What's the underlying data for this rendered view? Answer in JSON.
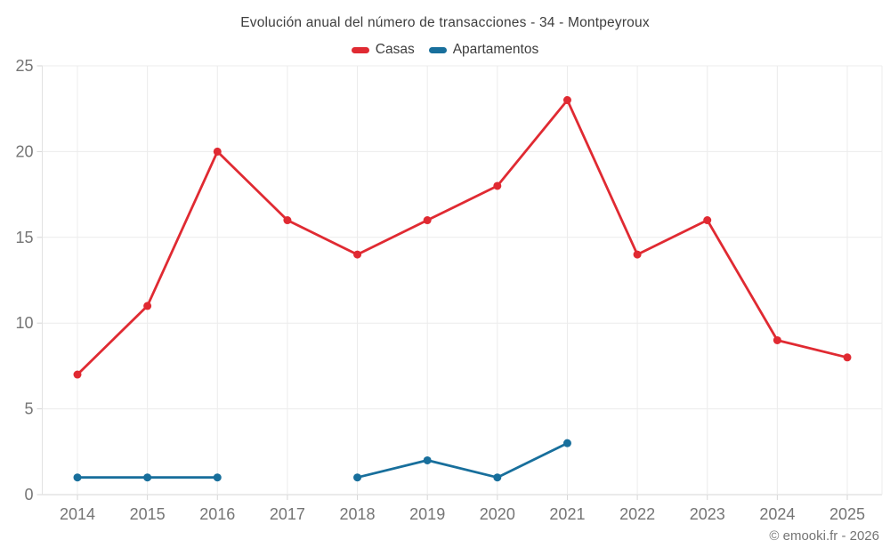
{
  "chart_data": {
    "type": "line",
    "title": "Evolución anual del número de transacciones - 34 - Montpeyroux",
    "categories": [
      "2014",
      "2015",
      "2016",
      "2017",
      "2018",
      "2019",
      "2020",
      "2021",
      "2022",
      "2023",
      "2024",
      "2025"
    ],
    "series": [
      {
        "name": "Casas",
        "color": "#e02a32",
        "values": [
          7,
          11,
          20,
          16,
          14,
          16,
          18,
          23,
          14,
          16,
          9,
          8
        ]
      },
      {
        "name": "Apartamentos",
        "color": "#186f9c",
        "values": [
          1,
          1,
          1,
          null,
          1,
          2,
          1,
          3,
          null,
          null,
          null,
          null
        ]
      }
    ],
    "xlabel": "",
    "ylabel": "",
    "ylim": [
      0,
      25
    ],
    "yticks": [
      0,
      5,
      10,
      15,
      20,
      25
    ],
    "grid": true,
    "legend_position": "top",
    "footer": "© emooki.fr - 2026",
    "colors": {
      "grid_line": "#ececec",
      "axis_line": "#d6d6d6",
      "tick_label": "#757575",
      "title_text": "#3d3d3d"
    }
  }
}
